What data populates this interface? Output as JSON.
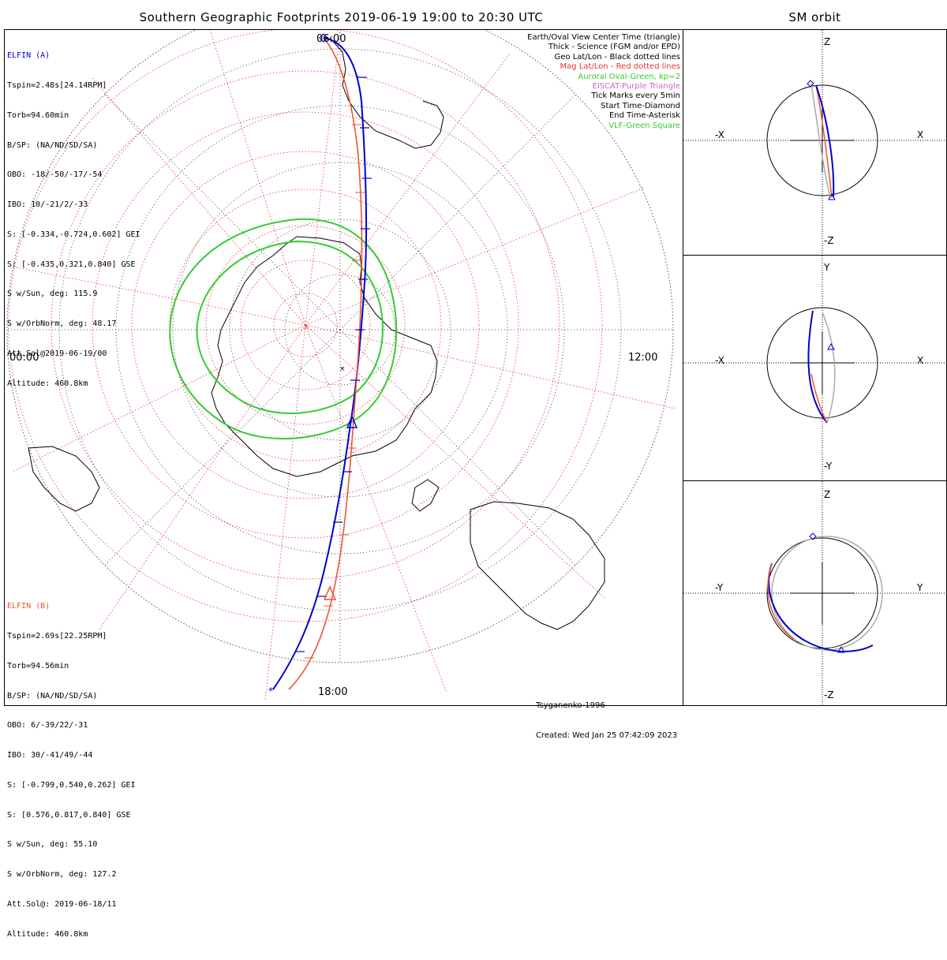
{
  "title": "Southern Geographic Footprints 2019-06-19 19:00 to 20:30 UTC",
  "sm_title": "SM orbit",
  "colors": {
    "elfin_a": "#0000cc",
    "elfin_b": "#ee5533",
    "auroral": "#33cc33",
    "grid_mag": "#ee3333",
    "eiscat": "#cc66cc",
    "vlf": "#33cc33",
    "orbit_gray": "#aaaaaa"
  },
  "elfin_a": {
    "header": "ELFIN (A)",
    "lines": [
      "Tspin=2.48s[24.14RPM]",
      "Torb=94.60min",
      "B/SP: (NA/ND/SD/SA)",
      "OBO: -18/-50/-17/-54",
      "IBO: 10/-21/2/-33",
      "S: [-0.334,-0.724,0.602] GEI",
      "S: [-0.435,0.321,0.840] GSE",
      "S w/Sun, deg: 115.9",
      "S w/OrbNorm, deg: 48.17",
      "Att.Sol@2019-06-19/00",
      "Altitude: 460.8km"
    ]
  },
  "elfin_b": {
    "header": "ELFIN (B)",
    "lines": [
      "Tspin=2.69s[22.25RPM]",
      "Torb=94.56min",
      "B/SP: (NA/ND/SD/SA)",
      "OBO: 6/-39/22/-31",
      "IBO: 30/-41/49/-44",
      "S: [-0.799,0.540,0.262] GEI",
      "S: [0.576,0.817,0.840] GSE",
      "S w/Sun, deg: 55.10",
      "S w/OrbNorm, deg: 127.2",
      "Att.Sol@: 2019-06-18/11",
      "Altitude: 460.8km"
    ]
  },
  "legend": [
    {
      "text": "Earth/Oval View Center Time (triangle)",
      "color": "#000000"
    },
    {
      "text": "Thick - Science (FGM and/or EPD)",
      "color": "#000000"
    },
    {
      "text": "Geo Lat/Lon - Black dotted lines",
      "color": "#000000"
    },
    {
      "text": "Mag Lat/Lon - Red dotted lines",
      "color": "#ee3333"
    },
    {
      "text": "Auroral Oval-Green, kp=2",
      "color": "#33cc33"
    },
    {
      "text": "EISCAT-Purple Triangle",
      "color": "#cc66cc"
    },
    {
      "text": "Tick Marks every 5min",
      "color": "#000000"
    },
    {
      "text": "Start Time-Diamond",
      "color": "#000000"
    },
    {
      "text": "End Time-Asterisk",
      "color": "#000000"
    },
    {
      "text": "VLF-Green Square",
      "color": "#33cc33"
    }
  ],
  "clock_labels": {
    "top": "06:00",
    "left": "00:00",
    "right": "12:00",
    "bottom": "18:00"
  },
  "footer": {
    "model": "Tsyganenko-1996",
    "created": "Created: Wed Jan 25 07:42:09 2023"
  },
  "sm_panels": [
    {
      "h_neg": "-X",
      "h_pos": "X",
      "v_pos": "Z",
      "v_neg": "-Z"
    },
    {
      "h_neg": "-X",
      "h_pos": "X",
      "v_pos": "Y",
      "v_neg": "-Y"
    },
    {
      "h_neg": "-Y",
      "h_pos": "Y",
      "v_pos": "Z",
      "v_neg": "-Z"
    }
  ]
}
